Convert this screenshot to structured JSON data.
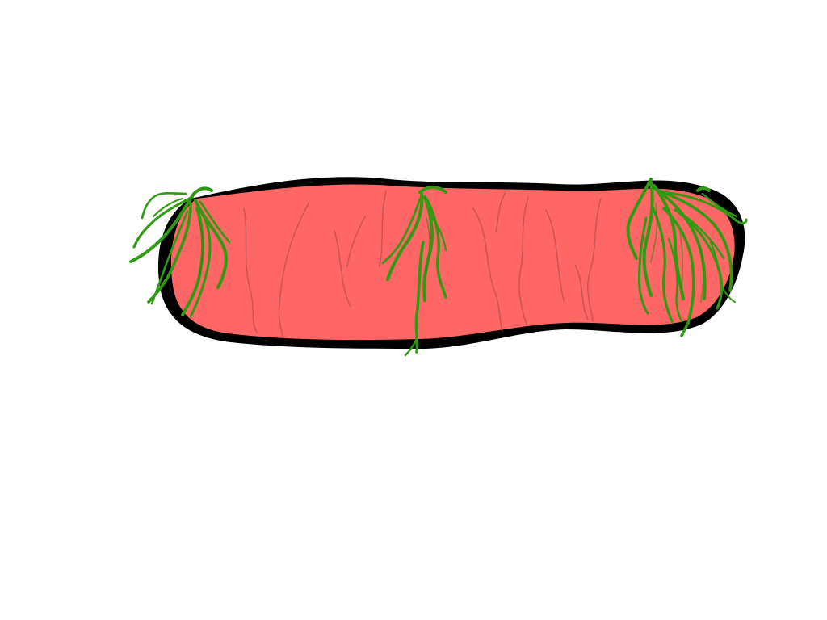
{
  "colors": {
    "background": "#ffffff",
    "outline": "#000000",
    "body_fill": "#ff6666",
    "vein": "#b54d4d",
    "tendril": "#2f9a12",
    "tendril_shade": "#2a7f10"
  },
  "icons": {
    "drawing": "pink-worm-segment-with-green-tendrils"
  }
}
